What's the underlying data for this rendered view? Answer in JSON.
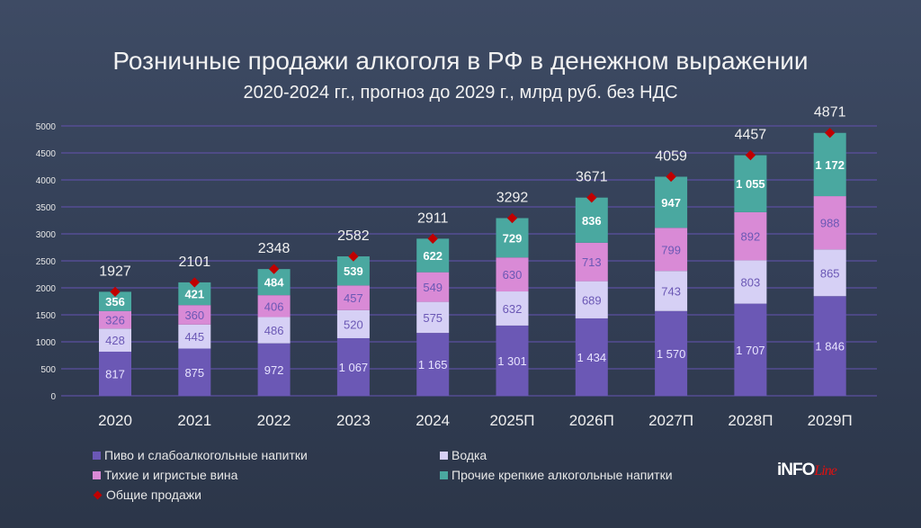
{
  "chart_data": {
    "type": "bar",
    "stacked": true,
    "title": "Розничные продажи алкоголя в РФ в денежном выражении",
    "subtitle": "2020-2024 гг., прогноз до 2029 г., млрд руб. без НДС",
    "categories": [
      "2020",
      "2021",
      "2022",
      "2023",
      "2024",
      "2025П",
      "2026П",
      "2027П",
      "2028П",
      "2029П"
    ],
    "series": [
      {
        "name": "Пиво и слабоалкогольные напитки",
        "color": "#6b58b5",
        "values": [
          817,
          875,
          972,
          1067,
          1165,
          1301,
          1434,
          1570,
          1707,
          1846
        ],
        "labels": [
          "817",
          "875",
          "972",
          "1 067",
          "1 165",
          "1 301",
          "1 434",
          "1 570",
          "1 707",
          "1 846"
        ]
      },
      {
        "name": "Водка",
        "color": "#d6d0f5",
        "values": [
          428,
          445,
          486,
          520,
          575,
          632,
          689,
          743,
          803,
          865
        ],
        "labels": [
          "428",
          "445",
          "486",
          "520",
          "575",
          "632",
          "689",
          "743",
          "803",
          "865"
        ]
      },
      {
        "name": "Тихие и игристые вина",
        "color": "#d98ad6",
        "values": [
          326,
          360,
          406,
          457,
          549,
          630,
          713,
          799,
          892,
          988
        ],
        "labels": [
          "326",
          "360",
          "406",
          "457",
          "549",
          "630",
          "713",
          "799",
          "892",
          "988"
        ]
      },
      {
        "name": "Прочие крепкие алкогольные напитки",
        "color": "#4aa8a0",
        "values": [
          356,
          421,
          484,
          539,
          622,
          729,
          836,
          947,
          1055,
          1172
        ],
        "labels": [
          "356",
          "421",
          "484",
          "539",
          "622",
          "729",
          "836",
          "947",
          "1 055",
          "1 172"
        ]
      }
    ],
    "totals": {
      "name": "Общие продажи",
      "color": "#c00000",
      "values": [
        1927,
        2101,
        2348,
        2582,
        2911,
        3292,
        3671,
        4059,
        4457,
        4871
      ]
    },
    "yticks": [
      0,
      500,
      1000,
      1500,
      2000,
      2500,
      3000,
      3500,
      4000,
      4500,
      5000
    ],
    "ylim": [
      0,
      5000
    ],
    "grid": true,
    "legend_placement": "bottom"
  },
  "logo": {
    "main": "iNFO",
    "script": "Line"
  }
}
